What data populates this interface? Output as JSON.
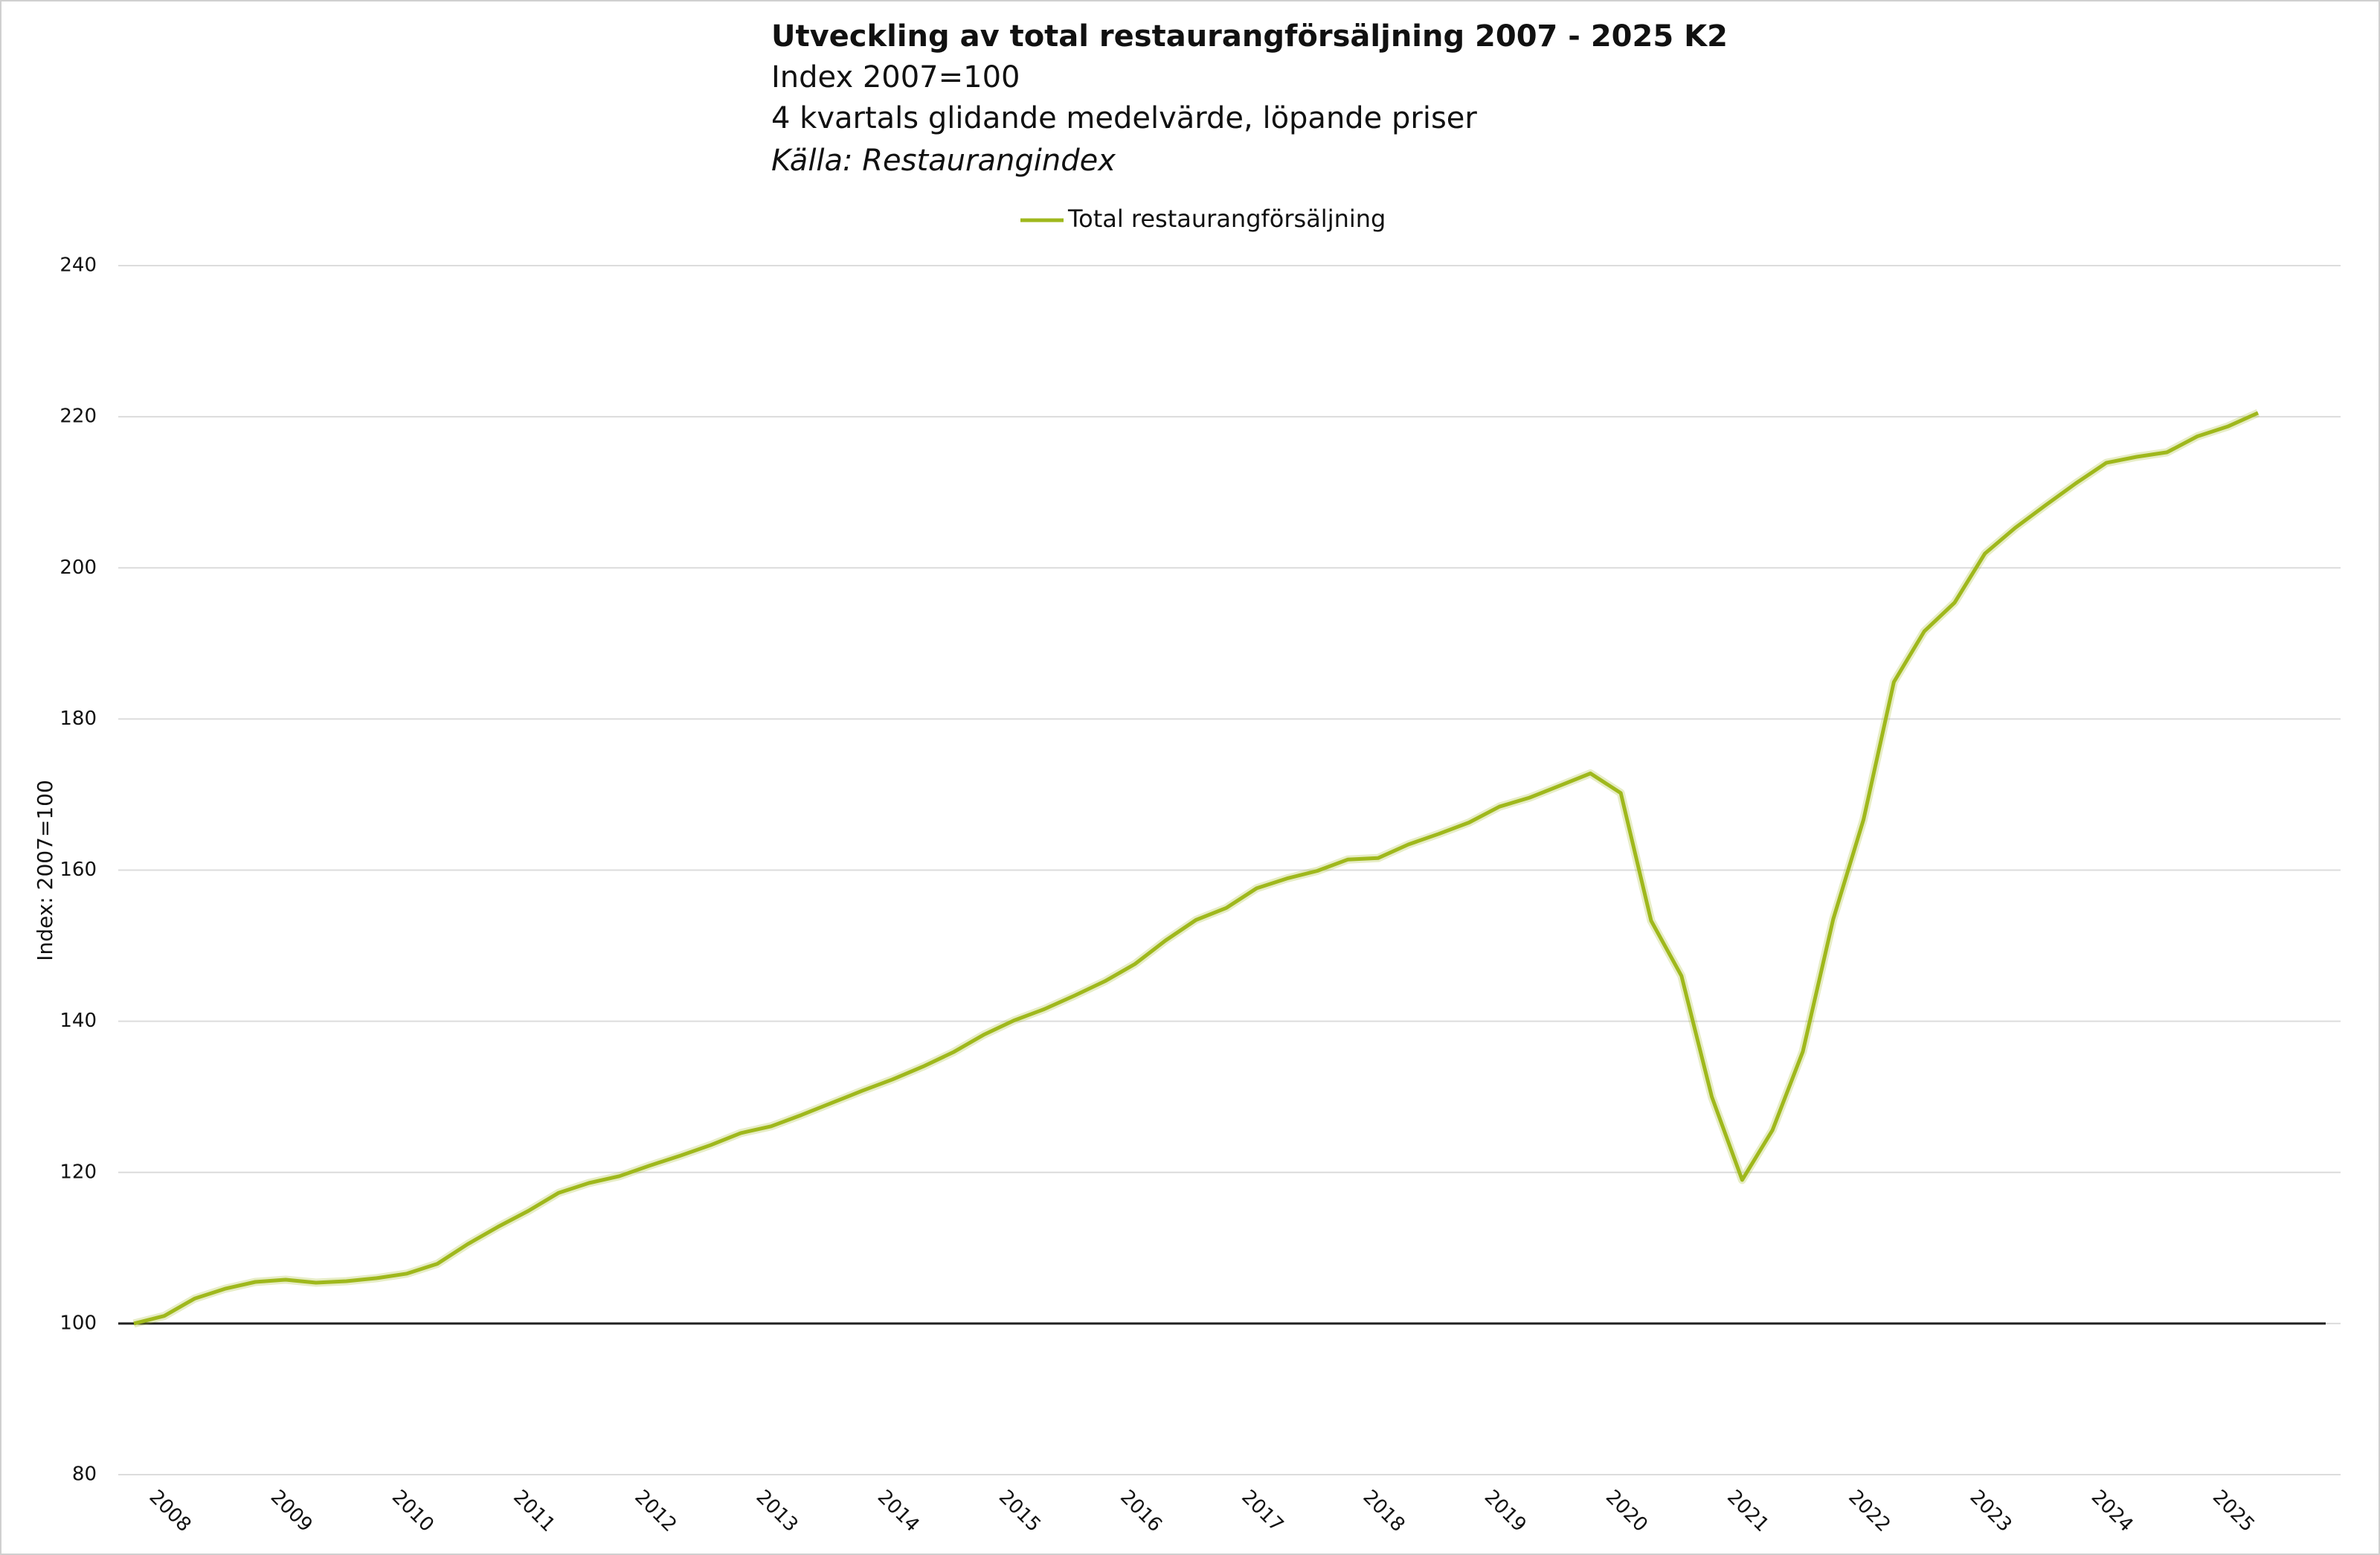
{
  "chart_data": {
    "type": "line",
    "title": "Utveckling av total restaurangförsäljning 2007 - 2025 K2",
    "subtitle_lines": [
      "Index 2007=100",
      "4 kvartals glidande medelvärde, löpande priser"
    ],
    "source": "Källa: Restaurangindex",
    "ylabel": "Index: 2007=100",
    "categories": [
      null,
      "2008",
      null,
      null,
      null,
      "2009",
      null,
      null,
      null,
      "2010",
      null,
      null,
      null,
      "2011",
      null,
      null,
      null,
      "2012",
      null,
      null,
      null,
      "2013",
      null,
      null,
      null,
      "2014",
      null,
      null,
      null,
      "2015",
      null,
      null,
      null,
      "2016",
      null,
      null,
      null,
      "2017",
      null,
      null,
      null,
      "2018",
      null,
      null,
      null,
      "2019",
      null,
      null,
      null,
      "2020",
      null,
      null,
      null,
      "2021",
      null,
      null,
      null,
      "2022",
      null,
      null,
      null,
      "2023",
      null,
      null,
      null,
      "2024",
      null,
      null,
      null,
      "2025",
      null
    ],
    "series": [
      {
        "name": "Total restaurangförsäljning",
        "color": "#9fb81c",
        "values": [
          100,
          101,
          103.3,
          104.6,
          105.5,
          105.8,
          105.4,
          105.6,
          106,
          106.6,
          107.9,
          110.5,
          112.8,
          114.9,
          117.3,
          118.6,
          119.5,
          120.9,
          122.2,
          123.6,
          125.2,
          126.1,
          127.6,
          129.2,
          130.8,
          132.3,
          134,
          135.9,
          138.2,
          140.1,
          141.6,
          143.4,
          145.3,
          147.6,
          150.7,
          153.4,
          155,
          157.6,
          158.9,
          159.9,
          161.4,
          161.6,
          163.4,
          164.8,
          166.3,
          168.4,
          169.6,
          171.2,
          172.8,
          170.2,
          153.3,
          146,
          130,
          119,
          125.6,
          136,
          153.5,
          166.7,
          184.9,
          191.6,
          195.4,
          201.9,
          205.3,
          208.3,
          211.2,
          213.9,
          214.7,
          215.3,
          217.4,
          218.7,
          220.5
        ]
      }
    ],
    "ylim": [
      80,
      240
    ],
    "yticks": [
      80,
      100,
      120,
      140,
      160,
      180,
      200,
      220,
      240
    ],
    "baseline": 100,
    "grid": true,
    "legend": "top"
  }
}
